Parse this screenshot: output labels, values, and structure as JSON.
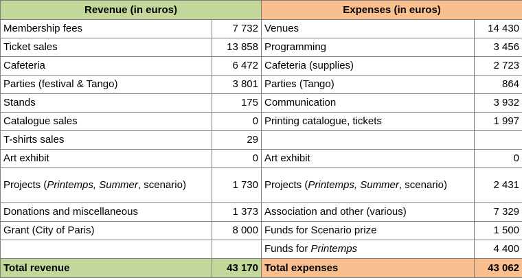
{
  "table": {
    "header": [
      "Revenue (in euros)",
      "Expenses (in euros)"
    ],
    "rows": [
      [
        "Membership fees",
        "7 732",
        "Venues",
        "14 430"
      ],
      [
        "Ticket sales",
        "13 858",
        "Programming",
        "3 456"
      ],
      [
        "Cafeteria",
        "6 472",
        "Cafeteria (supplies)",
        "2 723"
      ],
      [
        "Parties (festival & Tango)",
        "3 801",
        "Parties (Tango)",
        "864"
      ],
      [
        "Stands",
        "175",
        "Communication",
        "3 932"
      ],
      [
        "Catalogue sales",
        "0",
        "Printing catalogue, tickets",
        "1 997"
      ],
      [
        "T-shirts sales",
        "29",
        null,
        null
      ],
      [
        "Art exhibit",
        "0",
        "Art exhibit",
        "0"
      ],
      [
        [
          {
            "text": "Projects ("
          },
          {
            "text": "Printemps, Summer",
            "italic": true
          },
          {
            "text": ", scenario)"
          }
        ],
        "1 730",
        [
          {
            "text": "Projects ("
          },
          {
            "text": "Printemps, Summer",
            "italic": true
          },
          {
            "text": ", scenario)"
          }
        ],
        "2 431"
      ],
      [
        "Donations and miscellaneous",
        "1 373",
        "Association and other (various)",
        "7 329"
      ],
      [
        "Grant (City of Paris)",
        "8 000",
        "Funds for Scenario prize",
        "1 500"
      ],
      [
        null,
        null,
        [
          {
            "text": "Funds for "
          },
          {
            "text": "Printemps",
            "italic": true
          }
        ],
        "4 400"
      ]
    ],
    "total": [
      "Total revenue",
      "43 170",
      "Total expenses",
      "43 062"
    ]
  }
}
